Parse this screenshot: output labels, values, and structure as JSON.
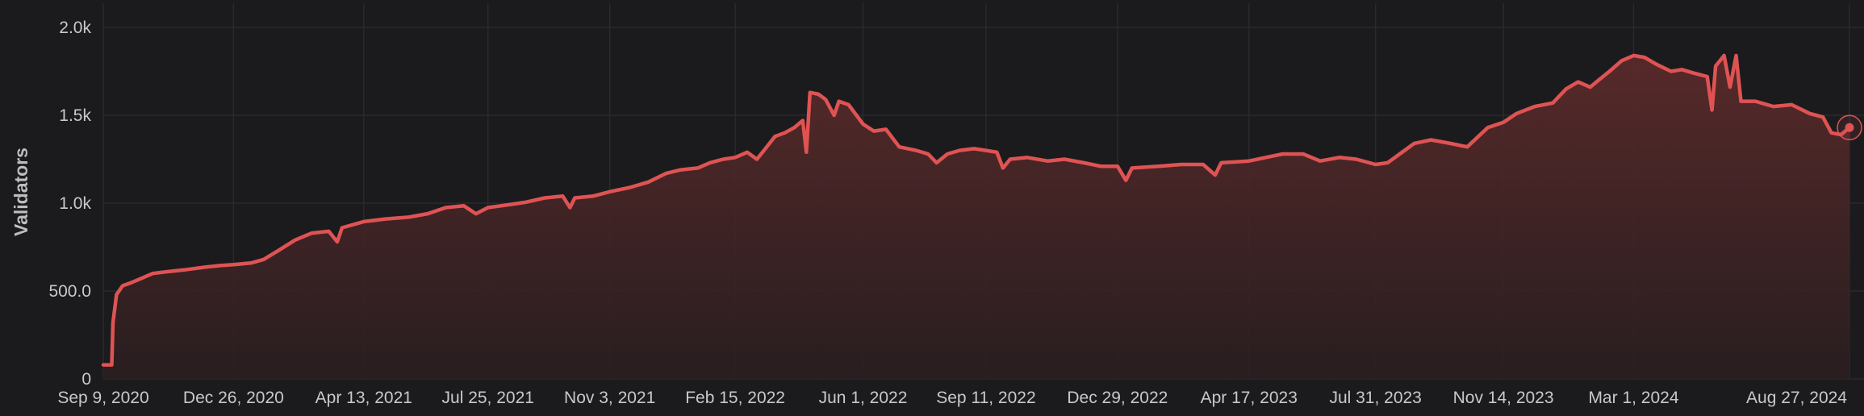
{
  "chart_data": {
    "type": "area",
    "title": "",
    "xlabel": "",
    "ylabel": "Validators",
    "ylim": [
      0,
      2000
    ],
    "y_ticks": [
      0,
      500,
      1000,
      1500,
      2000
    ],
    "y_tick_labels": [
      "0",
      "500.0",
      "1.0k",
      "1.5k",
      "2.0k"
    ],
    "x_range": [
      "2020-09-09",
      "2024-08-27"
    ],
    "x_tick_labels": [
      {
        "date": "2020-09-09",
        "label": "Sep 9, 2020"
      },
      {
        "date": "2020-12-26",
        "label": "Dec 26, 2020"
      },
      {
        "date": "2021-04-13",
        "label": "Apr 13, 2021"
      },
      {
        "date": "2021-07-25",
        "label": "Jul 25, 2021"
      },
      {
        "date": "2021-11-03",
        "label": "Nov 3, 2021"
      },
      {
        "date": "2022-02-15",
        "label": "Feb 15, 2022"
      },
      {
        "date": "2022-06-01",
        "label": "Jun 1, 2022"
      },
      {
        "date": "2022-09-11",
        "label": "Sep 11, 2022"
      },
      {
        "date": "2022-12-29",
        "label": "Dec 29, 2022"
      },
      {
        "date": "2023-04-17",
        "label": "Apr 17, 2023"
      },
      {
        "date": "2023-07-31",
        "label": "Jul 31, 2023"
      },
      {
        "date": "2023-11-14",
        "label": "Nov 14, 2023"
      },
      {
        "date": "2024-03-01",
        "label": "Mar 1, 2024"
      },
      {
        "date": "2024-08-27",
        "label": "Aug 27, 2024"
      }
    ],
    "grid": true,
    "legend": "none",
    "colors": {
      "line": "#e05353",
      "fill_top": "#5a2a2a",
      "fill_bottom": "#2a1e20",
      "background": "#1b1b1e",
      "grid": "#2a2a2e"
    },
    "series": [
      {
        "points": [
          [
            "2020-09-09",
            80
          ],
          [
            "2020-09-16",
            80
          ],
          [
            "2020-09-17",
            320
          ],
          [
            "2020-09-20",
            480
          ],
          [
            "2020-09-25",
            530
          ],
          [
            "2020-10-03",
            550
          ],
          [
            "2020-10-10",
            570
          ],
          [
            "2020-10-20",
            600
          ],
          [
            "2020-11-01",
            610
          ],
          [
            "2020-11-15",
            620
          ],
          [
            "2020-12-01",
            635
          ],
          [
            "2020-12-15",
            645
          ],
          [
            "2020-12-26",
            650
          ],
          [
            "2021-01-10",
            660
          ],
          [
            "2021-01-20",
            680
          ],
          [
            "2021-02-01",
            730
          ],
          [
            "2021-02-15",
            790
          ],
          [
            "2021-03-01",
            830
          ],
          [
            "2021-03-15",
            840
          ],
          [
            "2021-03-22",
            780
          ],
          [
            "2021-03-26",
            860
          ],
          [
            "2021-04-13",
            895
          ],
          [
            "2021-05-01",
            910
          ],
          [
            "2021-05-20",
            920
          ],
          [
            "2021-06-05",
            940
          ],
          [
            "2021-06-20",
            975
          ],
          [
            "2021-07-05",
            985
          ],
          [
            "2021-07-15",
            940
          ],
          [
            "2021-07-25",
            975
          ],
          [
            "2021-08-10",
            990
          ],
          [
            "2021-08-25",
            1005
          ],
          [
            "2021-09-10",
            1030
          ],
          [
            "2021-09-25",
            1040
          ],
          [
            "2021-10-01",
            975
          ],
          [
            "2021-10-05",
            1030
          ],
          [
            "2021-10-20",
            1040
          ],
          [
            "2021-11-03",
            1065
          ],
          [
            "2021-11-20",
            1090
          ],
          [
            "2021-12-05",
            1120
          ],
          [
            "2021-12-20",
            1170
          ],
          [
            "2022-01-01",
            1190
          ],
          [
            "2022-01-15",
            1200
          ],
          [
            "2022-01-25",
            1230
          ],
          [
            "2022-02-05",
            1250
          ],
          [
            "2022-02-15",
            1260
          ],
          [
            "2022-02-25",
            1290
          ],
          [
            "2022-03-05",
            1250
          ],
          [
            "2022-03-12",
            1310
          ],
          [
            "2022-03-20",
            1380
          ],
          [
            "2022-03-28",
            1400
          ],
          [
            "2022-04-05",
            1430
          ],
          [
            "2022-04-12",
            1470
          ],
          [
            "2022-04-15",
            1290
          ],
          [
            "2022-04-18",
            1630
          ],
          [
            "2022-04-25",
            1620
          ],
          [
            "2022-05-01",
            1590
          ],
          [
            "2022-05-08",
            1500
          ],
          [
            "2022-05-12",
            1580
          ],
          [
            "2022-05-20",
            1560
          ],
          [
            "2022-06-01",
            1450
          ],
          [
            "2022-06-10",
            1410
          ],
          [
            "2022-06-20",
            1420
          ],
          [
            "2022-07-01",
            1320
          ],
          [
            "2022-07-15",
            1300
          ],
          [
            "2022-07-25",
            1280
          ],
          [
            "2022-08-01",
            1230
          ],
          [
            "2022-08-10",
            1280
          ],
          [
            "2022-08-20",
            1300
          ],
          [
            "2022-09-01",
            1310
          ],
          [
            "2022-09-11",
            1300
          ],
          [
            "2022-09-20",
            1290
          ],
          [
            "2022-09-25",
            1200
          ],
          [
            "2022-10-01",
            1250
          ],
          [
            "2022-10-15",
            1260
          ],
          [
            "2022-11-01",
            1240
          ],
          [
            "2022-11-15",
            1250
          ],
          [
            "2022-12-01",
            1230
          ],
          [
            "2022-12-15",
            1210
          ],
          [
            "2022-12-29",
            1210
          ],
          [
            "2023-01-05",
            1130
          ],
          [
            "2023-01-10",
            1200
          ],
          [
            "2023-02-01",
            1210
          ],
          [
            "2023-02-20",
            1220
          ],
          [
            "2023-03-10",
            1220
          ],
          [
            "2023-03-20",
            1160
          ],
          [
            "2023-03-25",
            1230
          ],
          [
            "2023-04-17",
            1240
          ],
          [
            "2023-05-01",
            1260
          ],
          [
            "2023-05-15",
            1280
          ],
          [
            "2023-06-01",
            1280
          ],
          [
            "2023-06-15",
            1240
          ],
          [
            "2023-07-01",
            1260
          ],
          [
            "2023-07-15",
            1250
          ],
          [
            "2023-07-31",
            1220
          ],
          [
            "2023-08-10",
            1230
          ],
          [
            "2023-08-20",
            1280
          ],
          [
            "2023-09-01",
            1340
          ],
          [
            "2023-09-15",
            1360
          ],
          [
            "2023-10-01",
            1340
          ],
          [
            "2023-10-15",
            1320
          ],
          [
            "2023-11-01",
            1430
          ],
          [
            "2023-11-14",
            1460
          ],
          [
            "2023-11-25",
            1510
          ],
          [
            "2023-12-10",
            1550
          ],
          [
            "2023-12-25",
            1570
          ],
          [
            "2024-01-05",
            1650
          ],
          [
            "2024-01-15",
            1690
          ],
          [
            "2024-01-25",
            1660
          ],
          [
            "2024-02-01",
            1700
          ],
          [
            "2024-02-10",
            1750
          ],
          [
            "2024-02-20",
            1810
          ],
          [
            "2024-03-01",
            1840
          ],
          [
            "2024-03-10",
            1830
          ],
          [
            "2024-03-20",
            1790
          ],
          [
            "2024-04-01",
            1750
          ],
          [
            "2024-04-10",
            1760
          ],
          [
            "2024-04-20",
            1740
          ],
          [
            "2024-05-01",
            1720
          ],
          [
            "2024-05-05",
            1530
          ],
          [
            "2024-05-08",
            1780
          ],
          [
            "2024-05-15",
            1840
          ],
          [
            "2024-05-20",
            1660
          ],
          [
            "2024-05-25",
            1840
          ],
          [
            "2024-05-29",
            1580
          ],
          [
            "2024-06-10",
            1580
          ],
          [
            "2024-06-25",
            1550
          ],
          [
            "2024-07-10",
            1560
          ],
          [
            "2024-07-25",
            1510
          ],
          [
            "2024-08-05",
            1490
          ],
          [
            "2024-08-12",
            1400
          ],
          [
            "2024-08-20",
            1390
          ],
          [
            "2024-08-27",
            1430
          ]
        ]
      }
    ]
  }
}
